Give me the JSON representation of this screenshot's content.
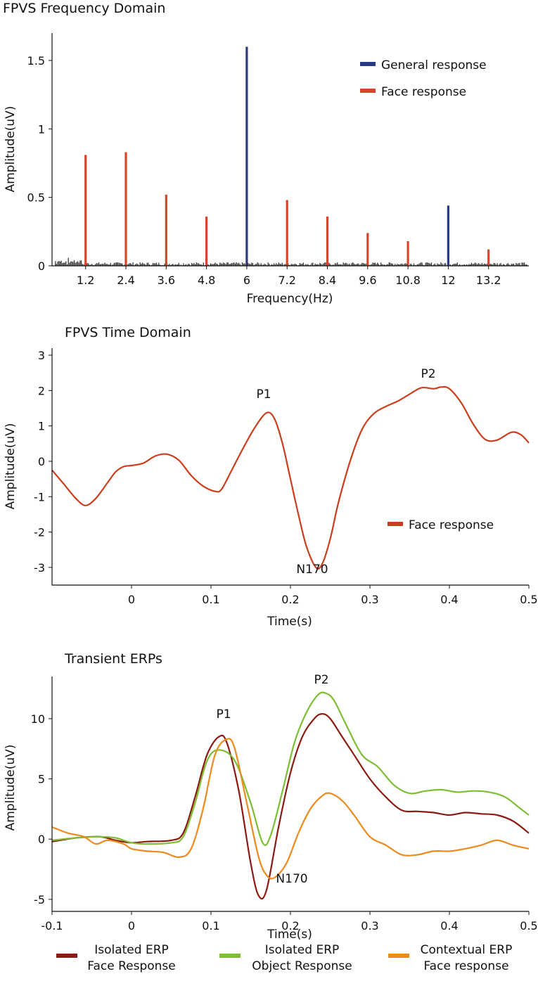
{
  "chart_data": [
    {
      "type": "bar",
      "title": "FPVS Frequency Domain",
      "xlabel": "Frequency(Hz)",
      "ylabel": "Amplitude(uV)",
      "xlim": [
        0.2,
        14.4
      ],
      "ylim": [
        0,
        1.7
      ],
      "xticks": [
        "1.2",
        "2.4",
        "3.6",
        "4.8",
        "6",
        "7.2",
        "8.4",
        "9.6",
        "10.8",
        "12",
        "13.2"
      ],
      "yticks": [
        "0",
        "0.5",
        "1",
        "1.5"
      ],
      "legend": [
        "General response",
        "Face response"
      ],
      "legend_position": "top-right",
      "series": [
        {
          "name": "General response",
          "color": "#2b3a84",
          "x": [
            6.0,
            12.0
          ],
          "values": [
            1.6,
            0.44
          ]
        },
        {
          "name": "Face response",
          "color": "#d9452a",
          "x": [
            1.2,
            2.4,
            3.6,
            4.8,
            7.2,
            8.4,
            9.6,
            10.8,
            13.2
          ],
          "values": [
            0.81,
            0.83,
            0.52,
            0.36,
            0.48,
            0.36,
            0.24,
            0.18,
            0.12
          ]
        }
      ],
      "noise_color": "#3a3a3a"
    },
    {
      "type": "line",
      "title": "FPVS Time Domain",
      "xlabel": "Time(s)",
      "ylabel": "Amplitude(uV)",
      "xlim": [
        -0.1,
        0.5
      ],
      "ylim": [
        -3.5,
        3.2
      ],
      "xticks": [
        "0",
        "0.1",
        "0.2",
        "0.3",
        "0.4",
        "0.5"
      ],
      "yticks": [
        "3",
        "2",
        "1",
        "0",
        "-1",
        "-2",
        "-3"
      ],
      "legend": [
        "Face response"
      ],
      "legend_position": "lower-right",
      "annotations": [
        {
          "text": "P1",
          "x": 0.17,
          "y": 1.37
        },
        {
          "text": "N170",
          "x": 0.232,
          "y": -3.0
        },
        {
          "text": "P2",
          "x": 0.38,
          "y": 2.1
        }
      ],
      "series": [
        {
          "name": "Face response",
          "color": "#cc3d1c",
          "x": [
            -0.1,
            -0.085,
            -0.07,
            -0.058,
            -0.045,
            -0.03,
            -0.02,
            -0.01,
            0.0,
            0.015,
            0.03,
            0.045,
            0.06,
            0.075,
            0.09,
            0.105,
            0.113,
            0.125,
            0.14,
            0.155,
            0.17,
            0.18,
            0.19,
            0.2,
            0.21,
            0.22,
            0.232,
            0.24,
            0.25,
            0.26,
            0.275,
            0.29,
            0.305,
            0.32,
            0.335,
            0.35,
            0.365,
            0.38,
            0.39,
            0.4,
            0.415,
            0.43,
            0.445,
            0.46,
            0.478,
            0.49,
            0.5
          ],
          "values": [
            -0.25,
            -0.65,
            -1.05,
            -1.25,
            -1.05,
            -0.6,
            -0.3,
            -0.15,
            -0.12,
            -0.05,
            0.15,
            0.2,
            0.02,
            -0.4,
            -0.7,
            -0.85,
            -0.8,
            -0.3,
            0.35,
            0.95,
            1.37,
            1.2,
            0.5,
            -0.5,
            -1.5,
            -2.4,
            -3.0,
            -2.9,
            -2.2,
            -1.2,
            0.0,
            0.9,
            1.35,
            1.55,
            1.7,
            1.9,
            2.08,
            2.05,
            2.1,
            2.05,
            1.65,
            1.05,
            0.62,
            0.6,
            0.82,
            0.75,
            0.52
          ]
        }
      ]
    },
    {
      "type": "line",
      "title": "Transient ERPs",
      "xlabel": "Time(s)",
      "ylabel": "Amplitude(uV)",
      "xlim": [
        -0.1,
        0.5
      ],
      "ylim": [
        -6,
        13.5
      ],
      "xticks": [
        "-0.1",
        "0",
        "0.1",
        "0.2",
        "0.3",
        "0.4",
        "0.5"
      ],
      "yticks": [
        "10",
        "5",
        "0",
        "-5"
      ],
      "annotations": [
        {
          "text": "P1",
          "x": 0.118,
          "y": 9.2
        },
        {
          "text": "N170",
          "x": 0.168,
          "y": -4.8
        },
        {
          "text": "P2",
          "x": 0.24,
          "y": 12.2
        }
      ],
      "legend_items": [
        {
          "line1": "Isolated ERP",
          "line2": "Face Response",
          "color": "#8c1a12"
        },
        {
          "line1": "Isolated ERP",
          "line2": "Object Response",
          "color": "#7dbe33"
        },
        {
          "line1": "Contextual ERP",
          "line2": "Face response",
          "color": "#ee8a1c"
        }
      ],
      "series": [
        {
          "name": "Isolated ERP Face Response",
          "color": "#8c1a12",
          "x": [
            -0.1,
            -0.07,
            -0.04,
            -0.02,
            0.0,
            0.02,
            0.05,
            0.065,
            0.08,
            0.095,
            0.11,
            0.12,
            0.135,
            0.15,
            0.16,
            0.17,
            0.185,
            0.2,
            0.215,
            0.23,
            0.24,
            0.25,
            0.265,
            0.28,
            0.3,
            0.32,
            0.34,
            0.36,
            0.38,
            0.4,
            0.42,
            0.44,
            0.46,
            0.48,
            0.5
          ],
          "values": [
            -0.2,
            0.1,
            0.2,
            -0.1,
            -0.3,
            -0.2,
            -0.1,
            0.5,
            3.5,
            7.0,
            8.5,
            8.0,
            4.0,
            -2.0,
            -4.7,
            -4.2,
            1.0,
            5.5,
            8.5,
            10.0,
            10.4,
            10.0,
            8.5,
            7.0,
            5.0,
            3.5,
            2.4,
            2.3,
            2.2,
            2.0,
            2.2,
            2.1,
            2.0,
            1.5,
            0.5
          ]
        },
        {
          "name": "Isolated ERP Object Response",
          "color": "#7dbe33",
          "x": [
            -0.1,
            -0.07,
            -0.04,
            -0.02,
            0.0,
            0.02,
            0.05,
            0.065,
            0.08,
            0.095,
            0.11,
            0.13,
            0.15,
            0.165,
            0.175,
            0.19,
            0.205,
            0.22,
            0.235,
            0.245,
            0.255,
            0.27,
            0.29,
            0.31,
            0.33,
            0.35,
            0.37,
            0.39,
            0.41,
            0.43,
            0.45,
            0.47,
            0.49,
            0.5
          ],
          "values": [
            -0.1,
            0.1,
            0.2,
            0.1,
            -0.3,
            -0.4,
            -0.3,
            0.2,
            3.0,
            6.5,
            7.4,
            6.5,
            3.0,
            -0.3,
            0.3,
            4.0,
            8.0,
            10.5,
            12.0,
            12.1,
            11.5,
            9.5,
            7.0,
            6.0,
            4.5,
            3.8,
            4.0,
            4.1,
            3.9,
            4.0,
            3.9,
            3.5,
            2.5,
            2.0
          ]
        },
        {
          "name": "Contextual ERP Face response",
          "color": "#ee8a1c",
          "x": [
            -0.1,
            -0.08,
            -0.06,
            -0.045,
            -0.03,
            -0.01,
            0.0,
            0.02,
            0.04,
            0.06,
            0.075,
            0.09,
            0.105,
            0.12,
            0.13,
            0.145,
            0.16,
            0.17,
            0.18,
            0.195,
            0.21,
            0.225,
            0.24,
            0.25,
            0.265,
            0.28,
            0.3,
            0.32,
            0.34,
            0.36,
            0.38,
            0.4,
            0.42,
            0.44,
            0.46,
            0.48,
            0.5
          ],
          "values": [
            1.0,
            0.5,
            0.2,
            -0.4,
            -0.1,
            -0.4,
            -0.8,
            -1.0,
            -1.1,
            -1.5,
            -0.8,
            2.5,
            7.0,
            8.3,
            7.5,
            3.0,
            -1.5,
            -3.0,
            -3.2,
            -2.0,
            0.5,
            2.5,
            3.6,
            3.8,
            3.2,
            2.0,
            0.2,
            -0.5,
            -1.3,
            -1.3,
            -1.0,
            -1.0,
            -0.8,
            -0.5,
            -0.1,
            -0.5,
            -0.8
          ]
        }
      ]
    }
  ]
}
